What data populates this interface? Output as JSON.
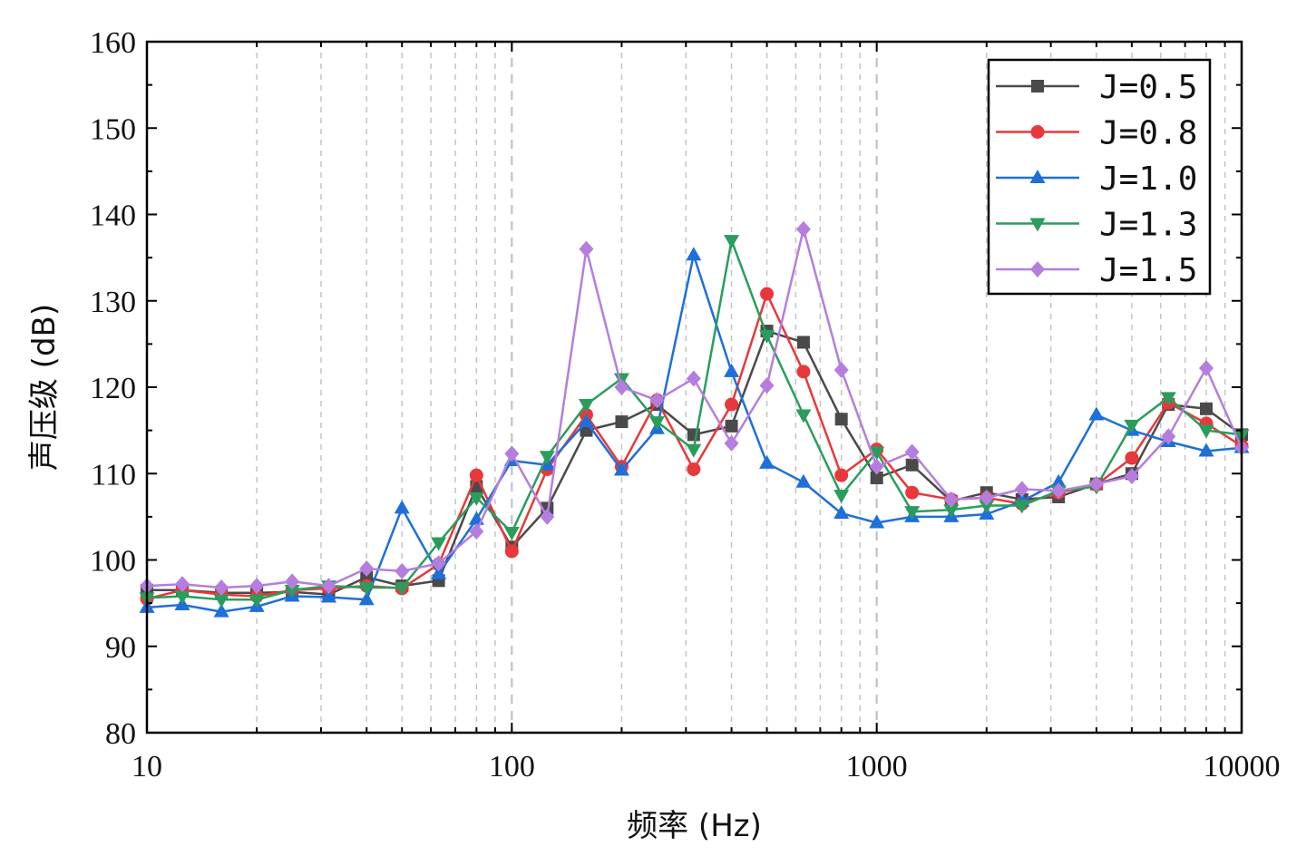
{
  "chart_data": {
    "type": "line",
    "xlabel": "频率 (Hz)",
    "ylabel": "声压级 (dB)",
    "x_scale": "log",
    "xlim": [
      10,
      10000
    ],
    "ylim": [
      80,
      160
    ],
    "grid": "vertical dashed at log minor ticks",
    "legend_position": "top-right",
    "x_tick_labels": [
      "10",
      "100",
      "1000",
      "10000"
    ],
    "y_tick_labels": [
      "80",
      "90",
      "100",
      "110",
      "120",
      "130",
      "140",
      "150",
      "160"
    ],
    "x": [
      10,
      12.5,
      16,
      20,
      25,
      31.5,
      40,
      50,
      63,
      80,
      100,
      125,
      160,
      200,
      250,
      315,
      400,
      500,
      630,
      800,
      1000,
      1250,
      1600,
      2000,
      2500,
      3150,
      4000,
      5000,
      6300,
      8000,
      10000
    ],
    "series": [
      {
        "name": "J=0.5",
        "color": "#4a4a4a",
        "marker": "square",
        "values": [
          96.5,
          96.5,
          96.2,
          96.2,
          96.3,
          96.0,
          98.0,
          97.0,
          97.6,
          108.5,
          101.5,
          106.0,
          115.0,
          116.0,
          118.0,
          114.5,
          115.5,
          126.5,
          125.2,
          116.3,
          109.5,
          111.0,
          106.8,
          107.8,
          107.0,
          107.3,
          108.8,
          110.0,
          118.0,
          117.5,
          114.5
        ]
      },
      {
        "name": "J=0.8",
        "color": "#e8383b",
        "marker": "circle",
        "values": [
          95.5,
          96.5,
          96.0,
          95.8,
          96.5,
          96.7,
          97.0,
          96.7,
          99.5,
          109.8,
          101.0,
          110.5,
          116.8,
          110.8,
          118.5,
          110.5,
          118.0,
          130.8,
          121.8,
          109.8,
          112.8,
          107.8,
          107.0,
          107.2,
          106.5,
          107.8,
          108.7,
          111.8,
          118.2,
          115.8,
          113.2
        ]
      },
      {
        "name": "J=1.0",
        "color": "#1e6fd9",
        "marker": "triangle-up",
        "values": [
          94.5,
          94.8,
          94.0,
          94.6,
          95.8,
          95.7,
          95.4,
          106.0,
          98.4,
          104.7,
          111.5,
          111.0,
          116.0,
          110.4,
          115.2,
          135.3,
          121.8,
          111.2,
          109.0,
          105.4,
          104.3,
          105.0,
          105.0,
          105.3,
          106.8,
          109.0,
          116.8,
          115.0,
          113.7,
          112.6,
          113.0
        ]
      },
      {
        "name": "J=1.3",
        "color": "#2a9d5c",
        "marker": "triangle-down",
        "values": [
          95.6,
          95.8,
          95.4,
          95.4,
          96.5,
          97.0,
          96.8,
          96.8,
          102.0,
          107.2,
          103.2,
          112.0,
          118.0,
          121.0,
          116.0,
          112.8,
          137.0,
          126.0,
          116.8,
          107.5,
          112.5,
          105.6,
          105.8,
          106.3,
          106.3,
          108.0,
          108.5,
          115.6,
          118.8,
          115.0,
          114.5
        ]
      },
      {
        "name": "J=1.5",
        "color": "#b57ede",
        "marker": "diamond",
        "values": [
          97.0,
          97.2,
          96.8,
          97.0,
          97.5,
          97.0,
          99.0,
          98.7,
          99.6,
          103.3,
          112.3,
          105.0,
          136.0,
          120.0,
          118.5,
          121.0,
          113.5,
          120.2,
          138.3,
          122.0,
          110.8,
          112.5,
          107.0,
          107.2,
          108.2,
          108.0,
          108.8,
          109.7,
          114.3,
          122.2,
          113.0
        ]
      }
    ]
  }
}
